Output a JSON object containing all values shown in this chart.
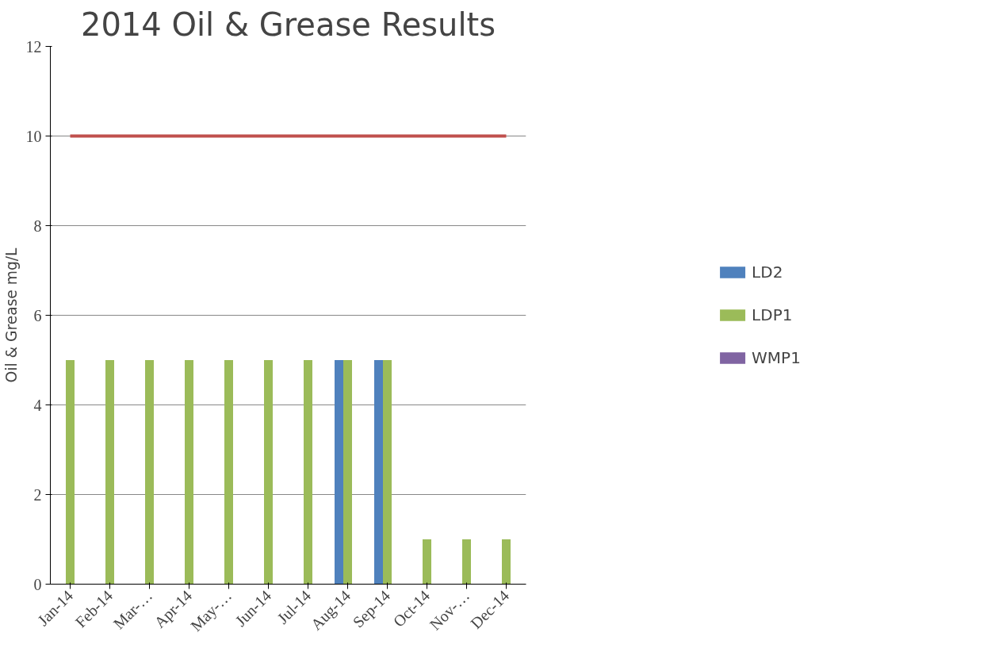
{
  "chart_data": {
    "type": "bar",
    "title": "2014 Oil & Grease Results",
    "ylabel": "Oil & Grease mg/L",
    "categories": [
      "Jan-14",
      "Feb-14",
      "Mar-…",
      "Apr-14",
      "May-…",
      "Jun-14",
      "Jul-14",
      "Aug-14",
      "Sep-14",
      "Oct-14",
      "Nov-…",
      "Dec-14"
    ],
    "series": [
      {
        "name": "LD2",
        "color": "#4f81bd",
        "values": [
          null,
          null,
          null,
          null,
          null,
          null,
          null,
          5,
          5,
          null,
          null,
          null
        ]
      },
      {
        "name": "LDP1",
        "color": "#9bbb59",
        "values": [
          5,
          5,
          5,
          5,
          5,
          5,
          5,
          5,
          5,
          1,
          1,
          1
        ]
      },
      {
        "name": "WMP1",
        "color": "#8064a2",
        "values": [
          null,
          null,
          null,
          null,
          null,
          null,
          null,
          null,
          null,
          null,
          null,
          null
        ]
      },
      {
        "type": "line",
        "color": "#c0504d",
        "values": [
          10,
          10,
          10,
          10,
          10,
          10,
          10,
          10,
          10,
          10,
          10,
          10
        ]
      }
    ],
    "ylim": [
      0,
      12
    ],
    "yticks": [
      0,
      2,
      4,
      6,
      8,
      10,
      12
    ],
    "grid": "y",
    "legend": "right"
  }
}
